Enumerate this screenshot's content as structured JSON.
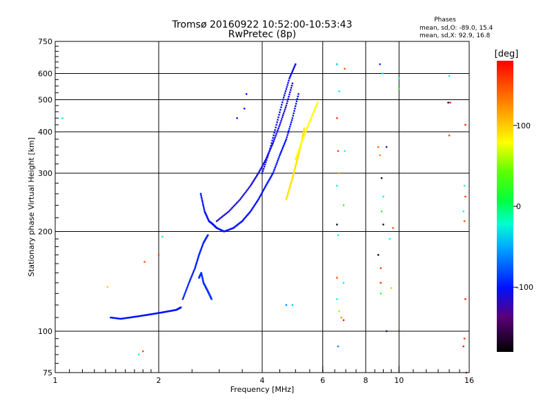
{
  "chart_data": {
    "type": "scatter",
    "title": "Tromsø 20160922 10:52:00-10:53:43",
    "subtitle": "RwPretec (8p)",
    "xlabel": "Frequency [MHz]",
    "ylabel": "Stationary phase Virtual Height [km]",
    "x_scale": "log",
    "y_scale": "log",
    "xlim": [
      1,
      16
    ],
    "ylim": [
      75,
      750
    ],
    "x_ticks": [
      1,
      2,
      4,
      6,
      8,
      10,
      16
    ],
    "y_ticks": [
      75,
      100,
      200,
      300,
      400,
      500,
      600,
      750
    ],
    "grid_x": [
      2,
      4,
      6,
      8,
      10
    ],
    "grid_y": [
      100,
      200,
      300,
      400,
      500,
      600
    ],
    "grid": true,
    "phases_box": {
      "title": "Phases",
      "line1": "mean, sd,O:  -89.0, 15.4",
      "line2": "mean, sd,X:  92.9, 16.8"
    },
    "colorbar": {
      "label": "[deg]",
      "ticks": [
        100,
        0,
        -100
      ],
      "range": [
        -180,
        180
      ]
    },
    "traces": [
      {
        "x": [
          1.45,
          1.55,
          1.65,
          1.75,
          1.85,
          1.95,
          2.05,
          2.15,
          2.25,
          2.32
        ],
        "y": [
          110,
          109,
          110,
          111,
          112,
          113,
          114,
          115,
          116,
          118
        ],
        "phase": -100
      },
      {
        "x": [
          2.35,
          2.45,
          2.55,
          2.62,
          2.7,
          2.78
        ],
        "y": [
          125,
          140,
          155,
          170,
          185,
          195
        ],
        "phase": -95
      },
      {
        "x": [
          2.62,
          2.66,
          2.7,
          2.75,
          2.8,
          2.85
        ],
        "y": [
          145,
          150,
          140,
          135,
          130,
          125
        ],
        "phase": -90
      },
      {
        "x": [
          2.65,
          2.72,
          2.8,
          2.88,
          2.95,
          3.1,
          3.3,
          3.5,
          3.7,
          3.9,
          4.1,
          4.3,
          4.5,
          4.7,
          4.9,
          5.1
        ],
        "y": [
          260,
          230,
          215,
          210,
          205,
          200,
          205,
          215,
          230,
          250,
          275,
          300,
          340,
          380,
          440,
          520
        ],
        "phase": -100
      },
      {
        "x": [
          2.95,
          3.2,
          3.45,
          3.7,
          3.9,
          4.1,
          4.3,
          4.5,
          4.7,
          4.9
        ],
        "y": [
          215,
          230,
          250,
          275,
          300,
          330,
          370,
          420,
          480,
          560
        ],
        "phase": -110
      },
      {
        "x": [
          4.0,
          4.2,
          4.4,
          4.6,
          4.8,
          5.0
        ],
        "y": [
          300,
          350,
          420,
          500,
          580,
          640
        ],
        "phase": -105
      },
      {
        "x": [
          4.7,
          4.8,
          4.9,
          5.0,
          5.1,
          5.2,
          5.3
        ],
        "y": [
          250,
          270,
          290,
          315,
          340,
          370,
          410
        ],
        "phase": 90
      },
      {
        "x": [
          5.0,
          5.2,
          5.4,
          5.6,
          5.8
        ],
        "y": [
          330,
          370,
          410,
          450,
          490
        ],
        "phase": 80
      }
    ],
    "isolated_points": [
      {
        "x": 1.05,
        "y": 440,
        "phase": -20
      },
      {
        "x": 1.42,
        "y": 136,
        "phase": 100
      },
      {
        "x": 1.75,
        "y": 85,
        "phase": -20
      },
      {
        "x": 1.8,
        "y": 87,
        "phase": 150
      },
      {
        "x": 1.82,
        "y": 162,
        "phase": 150
      },
      {
        "x": 2.0,
        "y": 170,
        "phase": 150
      },
      {
        "x": 2.05,
        "y": 193,
        "phase": -20
      },
      {
        "x": 3.6,
        "y": 520,
        "phase": -100
      },
      {
        "x": 3.38,
        "y": 440,
        "phase": -110
      },
      {
        "x": 3.55,
        "y": 470,
        "phase": -100
      },
      {
        "x": 4.7,
        "y": 120,
        "phase": -60
      },
      {
        "x": 4.9,
        "y": 120,
        "phase": -40
      },
      {
        "x": 6.6,
        "y": 640,
        "phase": -40
      },
      {
        "x": 6.95,
        "y": 620,
        "phase": 150
      },
      {
        "x": 6.7,
        "y": 530,
        "phase": -20
      },
      {
        "x": 6.6,
        "y": 440,
        "phase": 160
      },
      {
        "x": 6.65,
        "y": 350,
        "phase": 160
      },
      {
        "x": 6.95,
        "y": 350,
        "phase": -20
      },
      {
        "x": 6.7,
        "y": 300,
        "phase": 120
      },
      {
        "x": 6.6,
        "y": 275,
        "phase": -20
      },
      {
        "x": 6.9,
        "y": 240,
        "phase": 20
      },
      {
        "x": 6.6,
        "y": 210,
        "phase": -170
      },
      {
        "x": 6.65,
        "y": 195,
        "phase": -20
      },
      {
        "x": 6.6,
        "y": 145,
        "phase": 150
      },
      {
        "x": 6.9,
        "y": 140,
        "phase": -20
      },
      {
        "x": 6.6,
        "y": 125,
        "phase": -20
      },
      {
        "x": 6.7,
        "y": 115,
        "phase": 60
      },
      {
        "x": 6.8,
        "y": 110,
        "phase": 120
      },
      {
        "x": 6.9,
        "y": 108,
        "phase": 170
      },
      {
        "x": 6.65,
        "y": 90,
        "phase": -60
      },
      {
        "x": 8.8,
        "y": 640,
        "phase": -90
      },
      {
        "x": 8.95,
        "y": 600,
        "phase": -20
      },
      {
        "x": 8.7,
        "y": 360,
        "phase": 140
      },
      {
        "x": 8.8,
        "y": 340,
        "phase": 130
      },
      {
        "x": 9.2,
        "y": 360,
        "phase": -110
      },
      {
        "x": 8.9,
        "y": 290,
        "phase": -170
      },
      {
        "x": 9.0,
        "y": 255,
        "phase": -20
      },
      {
        "x": 8.9,
        "y": 230,
        "phase": 20
      },
      {
        "x": 9.0,
        "y": 210,
        "phase": -170
      },
      {
        "x": 8.7,
        "y": 170,
        "phase": -170
      },
      {
        "x": 8.85,
        "y": 155,
        "phase": 160
      },
      {
        "x": 8.85,
        "y": 140,
        "phase": 160
      },
      {
        "x": 8.85,
        "y": 130,
        "phase": 20
      },
      {
        "x": 9.4,
        "y": 190,
        "phase": -20
      },
      {
        "x": 9.6,
        "y": 205,
        "phase": 150
      },
      {
        "x": 9.5,
        "y": 135,
        "phase": 100
      },
      {
        "x": 9.2,
        "y": 100,
        "phase": -150
      },
      {
        "x": 10.0,
        "y": 580,
        "phase": -20
      },
      {
        "x": 10.0,
        "y": 540,
        "phase": 10
      },
      {
        "x": 14.0,
        "y": 590,
        "phase": -20
      },
      {
        "x": 13.9,
        "y": 490,
        "phase": -170
      },
      {
        "x": 14.1,
        "y": 490,
        "phase": 170
      },
      {
        "x": 14.0,
        "y": 390,
        "phase": 150
      },
      {
        "x": 15.6,
        "y": 420,
        "phase": 170
      },
      {
        "x": 15.5,
        "y": 275,
        "phase": -20
      },
      {
        "x": 15.6,
        "y": 255,
        "phase": 160
      },
      {
        "x": 15.4,
        "y": 230,
        "phase": -20
      },
      {
        "x": 15.5,
        "y": 215,
        "phase": 150
      },
      {
        "x": 15.6,
        "y": 125,
        "phase": 170
      },
      {
        "x": 15.5,
        "y": 95,
        "phase": 160
      },
      {
        "x": 15.4,
        "y": 90,
        "phase": 170
      },
      {
        "x": 15.7,
        "y": 75,
        "phase": 170
      }
    ]
  }
}
